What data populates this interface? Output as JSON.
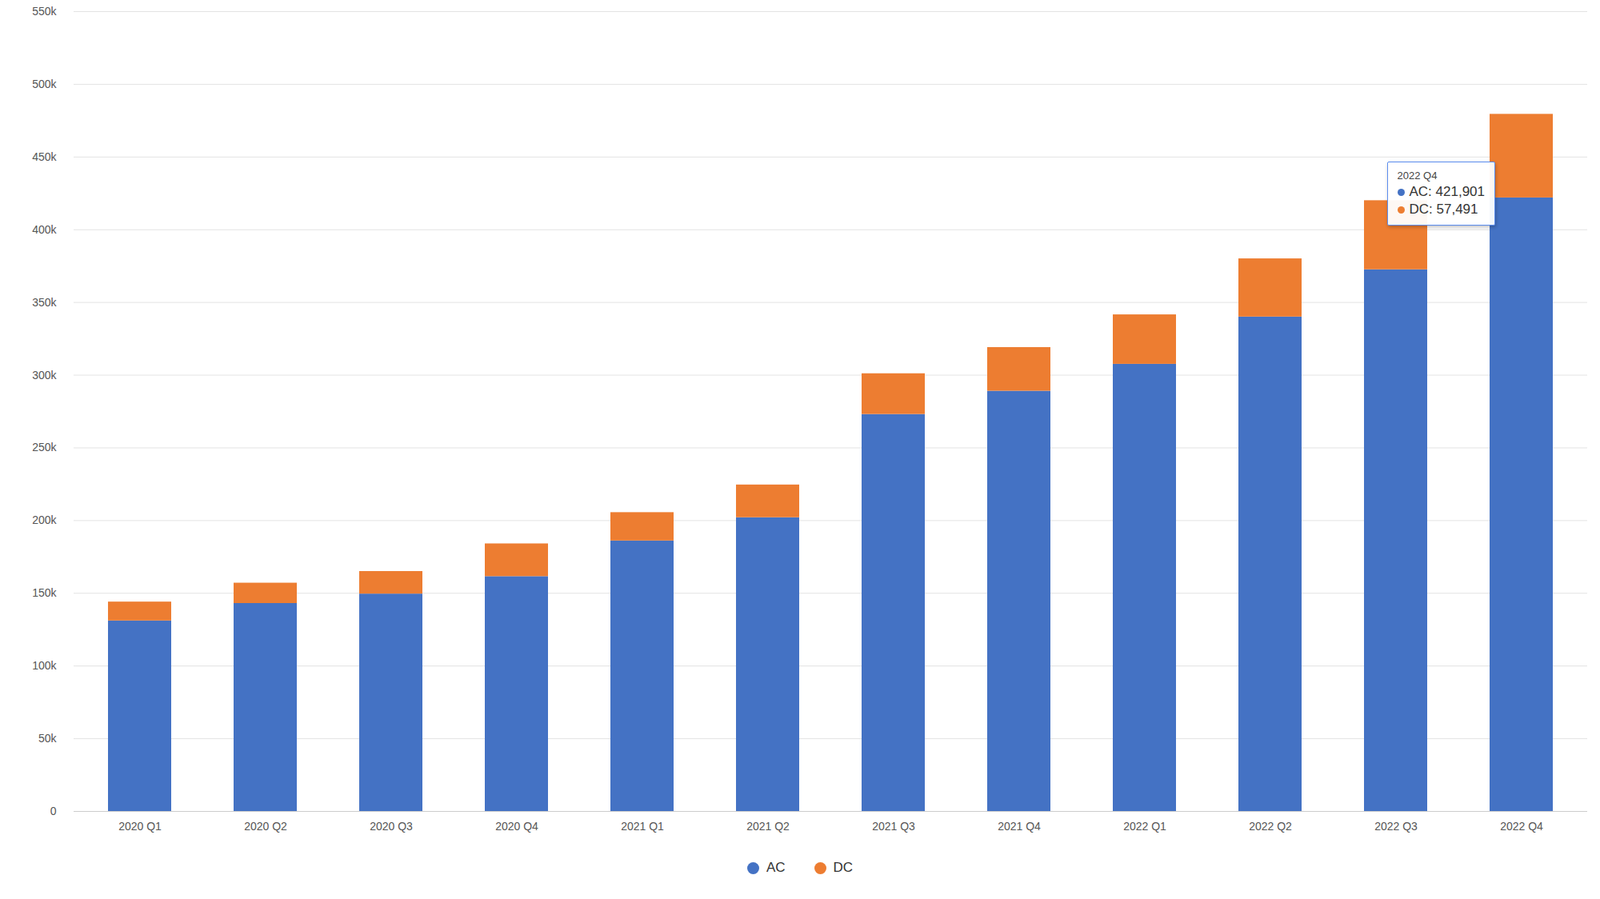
{
  "chart_data": {
    "type": "bar",
    "stacked": true,
    "grid": true,
    "legend": "bottom",
    "categories": [
      "2020 Q1",
      "2020 Q2",
      "2020 Q3",
      "2020 Q4",
      "2021 Q1",
      "2021 Q2",
      "2021 Q3",
      "2021 Q4",
      "2022 Q1",
      "2022 Q2",
      "2022 Q3",
      "2022 Q4"
    ],
    "series": [
      {
        "name": "AC",
        "color": "#4472c4",
        "values": [
          131000,
          143000,
          149500,
          161500,
          186000,
          202000,
          273000,
          289000,
          307500,
          340000,
          372500,
          421901
        ]
      },
      {
        "name": "DC",
        "color": "#ed7d31",
        "values": [
          13000,
          14000,
          15500,
          22500,
          19500,
          22500,
          28000,
          30000,
          34000,
          40000,
          47500,
          57491
        ]
      }
    ],
    "ylim": [
      0,
      550000
    ],
    "yticks": [
      0,
      {
        "value": 50000,
        "label": "50k"
      },
      {
        "value": 100000,
        "label": "100k"
      },
      {
        "value": 150000,
        "label": "150k"
      },
      {
        "value": 200000,
        "label": "200k"
      },
      {
        "value": 250000,
        "label": "250k"
      },
      {
        "value": 300000,
        "label": "300k"
      },
      {
        "value": 350000,
        "label": "350k"
      },
      {
        "value": 400000,
        "label": "400k"
      },
      {
        "value": 450000,
        "label": "450k"
      },
      {
        "value": 500000,
        "label": "500k"
      },
      {
        "value": 550000,
        "label": "550k"
      }
    ],
    "annotations": [
      {
        "category": "2022 Q4",
        "title": "2022 Q4",
        "lines": [
          "AC: 421,901",
          "DC: 57,491"
        ]
      }
    ]
  }
}
